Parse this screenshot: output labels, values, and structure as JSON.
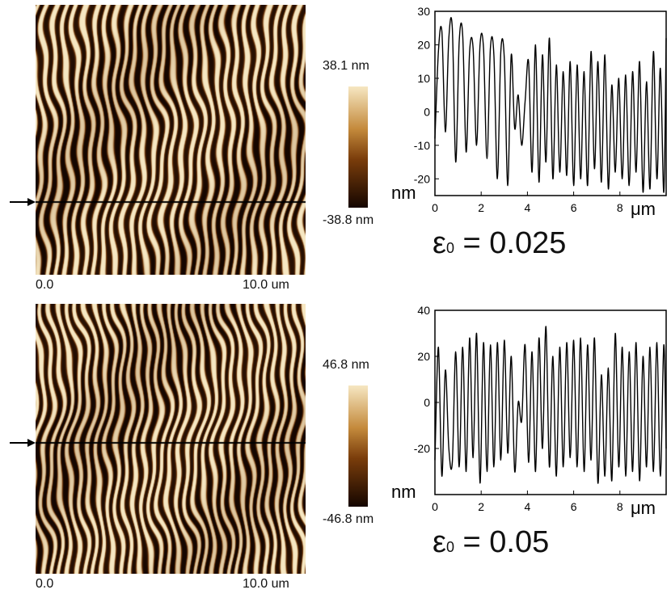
{
  "panels": [
    {
      "afm": {
        "x_start": "0.0",
        "x_end": "10.0 um",
        "colorbar_max": "38.1 nm",
        "colorbar_min": "-38.8 nm"
      },
      "strain": {
        "symbol": "ε",
        "subscript": "0",
        "value": " = 0.025"
      },
      "plot": {
        "ylabel": "nm",
        "xlabel": "μm",
        "yticks": [
          "30",
          "20",
          "10",
          "0",
          "-10",
          "-20"
        ],
        "xticks": [
          "0",
          "2",
          "4",
          "6",
          "8"
        ]
      }
    },
    {
      "afm": {
        "x_start": "0.0",
        "x_end": "10.0 um",
        "colorbar_max": "46.8 nm",
        "colorbar_min": "-46.8 nm"
      },
      "strain": {
        "symbol": "ε",
        "subscript": "0",
        "value": " = 0.05"
      },
      "plot": {
        "ylabel": "nm",
        "xlabel": "μm",
        "yticks": [
          "40",
          "20",
          "0",
          "-20"
        ],
        "xticks": [
          "0",
          "2",
          "4",
          "6",
          "8"
        ]
      }
    }
  ],
  "colors": {
    "afm_dark": "#150600",
    "afm_mid": "#7a3d0b",
    "afm_light": "#f6e7c2",
    "line": "#000000"
  },
  "chart_data": [
    {
      "type": "line",
      "title": "",
      "xlabel": "μm",
      "ylabel": "nm",
      "xlim": [
        0,
        10
      ],
      "ylim": [
        -25,
        30
      ],
      "x": [
        0.0,
        0.15,
        0.3,
        0.45,
        0.6,
        0.75,
        0.9,
        1.05,
        1.2,
        1.35,
        1.5,
        1.65,
        1.8,
        1.95,
        2.1,
        2.25,
        2.4,
        2.55,
        2.7,
        2.85,
        3.0,
        3.15,
        3.3,
        3.45,
        3.6,
        3.75,
        3.9,
        4.05,
        4.2,
        4.35,
        4.5,
        4.65,
        4.8,
        4.95,
        5.1,
        5.25,
        5.4,
        5.55,
        5.7,
        5.85,
        6.0,
        6.15,
        6.3,
        6.45,
        6.6,
        6.75,
        6.9,
        7.05,
        7.2,
        7.35,
        7.5,
        7.65,
        7.8,
        7.95,
        8.1,
        8.25,
        8.4,
        8.55,
        8.7,
        8.85,
        9.0,
        9.15,
        9.3,
        9.45,
        9.6,
        9.75,
        9.9,
        10.0
      ],
      "series": [
        {
          "values": [
            -8,
            18,
            24,
            -6,
            22,
            25,
            -15,
            21,
            23,
            -12,
            18,
            19,
            -10,
            20,
            19,
            -14,
            19,
            17,
            -20,
            18,
            16,
            -22,
            17,
            -5,
            5,
            -10,
            3,
            15,
            -18,
            20,
            -21,
            17,
            -15,
            22,
            -20,
            14,
            -18,
            12,
            -19,
            15,
            -22,
            14,
            -20,
            12,
            -22,
            18,
            -17,
            15,
            -21,
            17,
            -23,
            8,
            -18,
            10,
            -20,
            11,
            -22,
            12,
            -18,
            15,
            -24,
            9,
            -23,
            18,
            -20,
            13,
            -24,
            22
          ]
        }
      ]
    },
    {
      "type": "line",
      "title": "",
      "xlabel": "μm",
      "ylabel": "nm",
      "xlim": [
        0,
        10
      ],
      "ylim": [
        -40,
        40
      ],
      "x": [
        0.0,
        0.15,
        0.3,
        0.45,
        0.6,
        0.75,
        0.9,
        1.05,
        1.2,
        1.35,
        1.5,
        1.65,
        1.8,
        1.95,
        2.1,
        2.25,
        2.4,
        2.55,
        2.7,
        2.85,
        3.0,
        3.15,
        3.3,
        3.45,
        3.6,
        3.75,
        3.9,
        4.05,
        4.2,
        4.35,
        4.5,
        4.65,
        4.8,
        4.95,
        5.1,
        5.25,
        5.4,
        5.55,
        5.7,
        5.85,
        6.0,
        6.15,
        6.3,
        6.45,
        6.6,
        6.75,
        6.9,
        7.05,
        7.2,
        7.35,
        7.5,
        7.65,
        7.8,
        7.95,
        8.1,
        8.25,
        8.4,
        8.55,
        8.7,
        8.85,
        9.0,
        9.15,
        9.3,
        9.45,
        9.6,
        9.75,
        9.9,
        10.0
      ],
      "series": [
        {
          "values": [
            -25,
            24,
            -32,
            14,
            -20,
            -26,
            22,
            -28,
            24,
            -30,
            28,
            -24,
            30,
            -35,
            26,
            -30,
            25,
            -28,
            26,
            -25,
            27,
            -22,
            20,
            -30,
            0,
            -8,
            25,
            -26,
            22,
            -30,
            28,
            -20,
            33,
            -28,
            20,
            -32,
            24,
            -28,
            26,
            -24,
            27,
            -28,
            28,
            -30,
            25,
            -25,
            28,
            -35,
            12,
            -32,
            15,
            -34,
            30,
            -28,
            24,
            -32,
            22,
            -30,
            26,
            -34,
            20,
            -28,
            24,
            -30,
            26,
            -32,
            25,
            -20
          ]
        }
      ]
    }
  ]
}
